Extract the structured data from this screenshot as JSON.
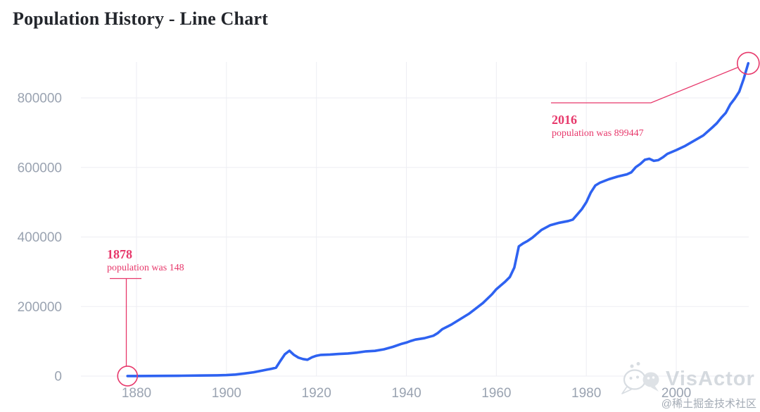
{
  "title": "Population History - Line Chart",
  "colors": {
    "line": "#2E62F1",
    "annotation": "#E7386B",
    "grid": "#EDEEF3",
    "axis_label": "#9AA3B1",
    "title": "#23262C",
    "watermark": "#CBD1D8"
  },
  "chart_data": {
    "type": "line",
    "title": "Population History - Line Chart",
    "xlabel": "",
    "ylabel": "",
    "grid": true,
    "legend": "none",
    "xlim": [
      1876,
      2018
    ],
    "ylim": [
      0,
      905000
    ],
    "x_ticks": [
      1880,
      1900,
      1920,
      1940,
      1960,
      1980,
      2000
    ],
    "y_ticks": [
      0,
      200000,
      400000,
      600000,
      800000
    ],
    "series_name": "population",
    "points": [
      [
        1878,
        148
      ],
      [
        1880,
        300
      ],
      [
        1883,
        500
      ],
      [
        1886,
        700
      ],
      [
        1890,
        1100
      ],
      [
        1894,
        1600
      ],
      [
        1898,
        2200
      ],
      [
        1900,
        2800
      ],
      [
        1902,
        4500
      ],
      [
        1904,
        7500
      ],
      [
        1906,
        11000
      ],
      [
        1908,
        16000
      ],
      [
        1910,
        21000
      ],
      [
        1911,
        24000
      ],
      [
        1912,
        44000
      ],
      [
        1913,
        63000
      ],
      [
        1914,
        73000
      ],
      [
        1915,
        61000
      ],
      [
        1916,
        53000
      ],
      [
        1917,
        49000
      ],
      [
        1918,
        47000
      ],
      [
        1919,
        54000
      ],
      [
        1920,
        58500
      ],
      [
        1921,
        61000
      ],
      [
        1923,
        62000
      ],
      [
        1925,
        63500
      ],
      [
        1927,
        65000
      ],
      [
        1929,
        67500
      ],
      [
        1931,
        71000
      ],
      [
        1933,
        72500
      ],
      [
        1935,
        77000
      ],
      [
        1937,
        84000
      ],
      [
        1939,
        93000
      ],
      [
        1940,
        96500
      ],
      [
        1941,
        101000
      ],
      [
        1942,
        105000
      ],
      [
        1944,
        109000
      ],
      [
        1946,
        116000
      ],
      [
        1947,
        124000
      ],
      [
        1948,
        135000
      ],
      [
        1949,
        141500
      ],
      [
        1950,
        148000
      ],
      [
        1952,
        164000
      ],
      [
        1954,
        180000
      ],
      [
        1955,
        190000
      ],
      [
        1957,
        210000
      ],
      [
        1959,
        235000
      ],
      [
        1960,
        250000
      ],
      [
        1961,
        261000
      ],
      [
        1962,
        272000
      ],
      [
        1963,
        285000
      ],
      [
        1964,
        312000
      ],
      [
        1965,
        373000
      ],
      [
        1966,
        382000
      ],
      [
        1967,
        389000
      ],
      [
        1968,
        398000
      ],
      [
        1970,
        420000
      ],
      [
        1972,
        434000
      ],
      [
        1974,
        441000
      ],
      [
        1976,
        446000
      ],
      [
        1977,
        450000
      ],
      [
        1978,
        465000
      ],
      [
        1979,
        480000
      ],
      [
        1980,
        500000
      ],
      [
        1981,
        528000
      ],
      [
        1982,
        548000
      ],
      [
        1983,
        556000
      ],
      [
        1985,
        566000
      ],
      [
        1987,
        574000
      ],
      [
        1989,
        580000
      ],
      [
        1990,
        586000
      ],
      [
        1991,
        601000
      ],
      [
        1992,
        610000
      ],
      [
        1993,
        622000
      ],
      [
        1994,
        625000
      ],
      [
        1995,
        619000
      ],
      [
        1996,
        621000
      ],
      [
        1997,
        629000
      ],
      [
        1998,
        639000
      ],
      [
        2000,
        650000
      ],
      [
        2002,
        662000
      ],
      [
        2004,
        677000
      ],
      [
        2006,
        692000
      ],
      [
        2008,
        715000
      ],
      [
        2009,
        727000
      ],
      [
        2010,
        743000
      ],
      [
        2011,
        757000
      ],
      [
        2012,
        781000
      ],
      [
        2013,
        798000
      ],
      [
        2014,
        818000
      ],
      [
        2015,
        855000
      ],
      [
        2016,
        899447
      ]
    ],
    "annotations": [
      {
        "year": 1878,
        "value": 148,
        "title": "1878",
        "text": "population was 148"
      },
      {
        "year": 2016,
        "value": 899447,
        "title": "2016",
        "text": "population was 899447"
      }
    ]
  },
  "watermark": {
    "brand": "VisActor",
    "credit": "@稀土掘金技术社区"
  }
}
